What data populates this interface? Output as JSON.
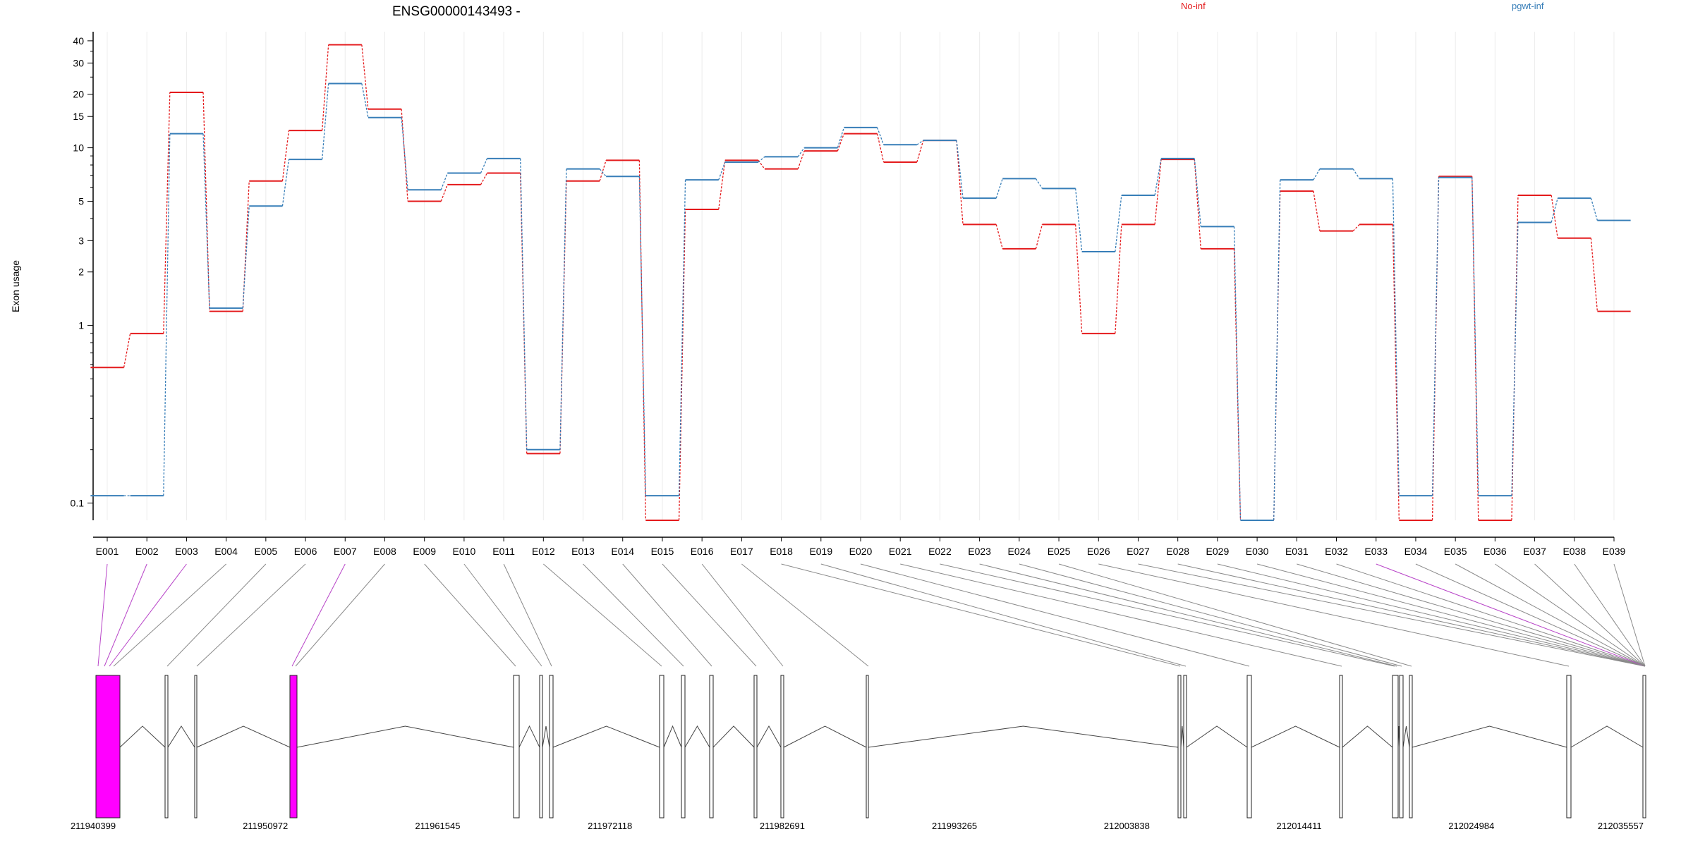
{
  "chart_data": {
    "type": "line",
    "title": "ENSG00000143493 -",
    "ylabel": "Exon usage",
    "y_scale": "log",
    "ylim": [
      0.08,
      45
    ],
    "y_ticks": [
      0.1,
      1,
      2,
      3,
      5,
      10,
      15,
      20,
      30,
      40
    ],
    "grid": "vertical",
    "legend_placement": "top",
    "categories": [
      "E001",
      "E002",
      "E003",
      "E004",
      "E005",
      "E006",
      "E007",
      "E008",
      "E009",
      "E010",
      "E011",
      "E012",
      "E013",
      "E014",
      "E015",
      "E016",
      "E017",
      "E018",
      "E019",
      "E020",
      "E021",
      "E022",
      "E023",
      "E024",
      "E025",
      "E026",
      "E027",
      "E028",
      "E029",
      "E030",
      "E031",
      "E032",
      "E033",
      "E034",
      "E035",
      "E036",
      "E037",
      "E038",
      "E039"
    ],
    "series": [
      {
        "name": "No-inf",
        "color": "#e41a1c",
        "style": "dashed",
        "values": [
          0.58,
          0.9,
          20.5,
          1.2,
          6.5,
          12.5,
          38.0,
          16.5,
          5.0,
          6.2,
          7.2,
          0.19,
          6.5,
          8.5,
          0.08,
          4.5,
          8.5,
          7.6,
          9.6,
          12.0,
          8.3,
          11.0,
          3.7,
          2.7,
          3.7,
          0.9,
          3.7,
          8.6,
          2.7,
          0.08,
          5.7,
          3.4,
          3.7,
          0.08,
          6.9,
          0.08,
          5.4,
          3.1,
          1.2
        ]
      },
      {
        "name": "pgwt-inf",
        "color": "#377eb8",
        "style": "dashed",
        "values": [
          0.11,
          0.11,
          12.0,
          1.25,
          4.7,
          8.6,
          23.0,
          14.8,
          5.8,
          7.2,
          8.7,
          0.2,
          7.6,
          6.9,
          0.11,
          6.6,
          8.3,
          8.9,
          10.0,
          13.0,
          10.4,
          11.0,
          5.2,
          6.7,
          5.9,
          2.6,
          5.4,
          8.7,
          3.6,
          0.08,
          6.6,
          7.6,
          6.7,
          0.11,
          6.8,
          0.11,
          3.8,
          5.2,
          3.9
        ]
      }
    ],
    "gene_model": {
      "coordinate_ticks": [
        "211940399",
        "211950972",
        "211961545",
        "211972118",
        "211982691",
        "211993265",
        "212003838",
        "212014411",
        "212024984",
        "212035557"
      ],
      "highlighted_exons": [
        "E001",
        "E002",
        "E003",
        "E007",
        "E033"
      ],
      "highlight_color": "#ff00ff"
    }
  }
}
